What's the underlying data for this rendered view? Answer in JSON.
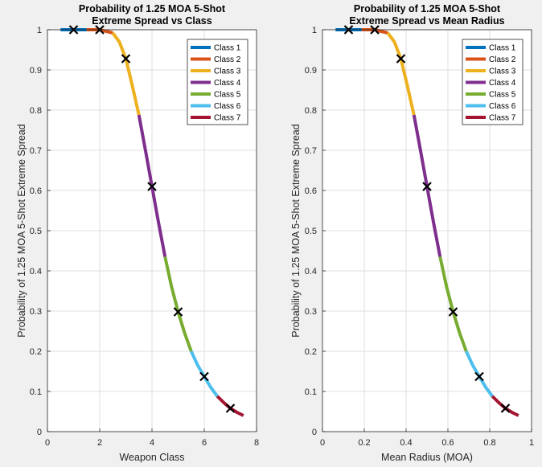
{
  "chart_data": [
    {
      "type": "line",
      "title": [
        "Probability of 1.25 MOA 5-Shot",
        "Extreme Spread vs Class"
      ],
      "xlabel": "Weapon Class",
      "ylabel": "Probability of 1.25 MOA 5-Shot Extreme Spread",
      "xlim": [
        0,
        8
      ],
      "ylim": [
        0,
        1
      ],
      "xticks": [
        0,
        2,
        4,
        6,
        8
      ],
      "yticks": [
        0,
        0.1,
        0.2,
        0.3,
        0.4,
        0.5,
        0.6,
        0.7,
        0.8,
        0.9,
        1
      ],
      "grid": true,
      "legend_position": "top-right",
      "series": [
        {
          "name": "Class 1",
          "color": "#0072BD",
          "x": [
            0.5,
            1.0,
            1.5
          ],
          "y": [
            1.0,
            1.0,
            1.0
          ]
        },
        {
          "name": "Class 2",
          "color": "#D95319",
          "x": [
            1.5,
            2.0,
            2.5
          ],
          "y": [
            1.0,
            1.0,
            0.992
          ]
        },
        {
          "name": "Class 3",
          "color": "#EDB120",
          "x": [
            2.5,
            2.75,
            3.0,
            3.25,
            3.5
          ],
          "y": [
            0.992,
            0.97,
            0.928,
            0.86,
            0.788
          ]
        },
        {
          "name": "Class 4",
          "color": "#7E2F8E",
          "x": [
            3.5,
            3.75,
            4.0,
            4.25,
            4.5
          ],
          "y": [
            0.788,
            0.7,
            0.61,
            0.52,
            0.435
          ]
        },
        {
          "name": "Class 5",
          "color": "#77AC30",
          "x": [
            4.5,
            4.75,
            5.0,
            5.25,
            5.5
          ],
          "y": [
            0.435,
            0.36,
            0.298,
            0.245,
            0.2
          ]
        },
        {
          "name": "Class 6",
          "color": "#4DBEEE",
          "x": [
            5.5,
            5.75,
            6.0,
            6.25,
            6.5
          ],
          "y": [
            0.2,
            0.165,
            0.137,
            0.11,
            0.088
          ]
        },
        {
          "name": "Class 7",
          "color": "#A2142F",
          "x": [
            6.5,
            6.75,
            7.0,
            7.25,
            7.5
          ],
          "y": [
            0.088,
            0.072,
            0.058,
            0.048,
            0.04
          ]
        }
      ],
      "markers": {
        "symbol": "x",
        "x": [
          1,
          2,
          3,
          4,
          5,
          6,
          7
        ],
        "y": [
          1.0,
          1.0,
          0.928,
          0.61,
          0.298,
          0.137,
          0.058
        ]
      }
    },
    {
      "type": "line",
      "title": [
        "Probability of 1.25 MOA 5-Shot",
        "Extreme Spread vs Mean Radius"
      ],
      "xlabel": "Mean Radius (MOA)",
      "ylabel": "Probability of 1.25 MOA 5-Shot Extreme Spread",
      "xlim": [
        0,
        1
      ],
      "ylim": [
        0,
        1
      ],
      "xticks": [
        0,
        0.2,
        0.4,
        0.6,
        0.8,
        1
      ],
      "yticks": [
        0,
        0.1,
        0.2,
        0.3,
        0.4,
        0.5,
        0.6,
        0.7,
        0.8,
        0.9,
        1
      ],
      "grid": true,
      "legend_position": "top-right",
      "series": [
        {
          "name": "Class 1",
          "color": "#0072BD",
          "x": [
            0.0625,
            0.125,
            0.1875
          ],
          "y": [
            1.0,
            1.0,
            1.0
          ]
        },
        {
          "name": "Class 2",
          "color": "#D95319",
          "x": [
            0.1875,
            0.25,
            0.3125
          ],
          "y": [
            1.0,
            1.0,
            0.992
          ]
        },
        {
          "name": "Class 3",
          "color": "#EDB120",
          "x": [
            0.3125,
            0.34375,
            0.375,
            0.40625,
            0.4375
          ],
          "y": [
            0.992,
            0.97,
            0.928,
            0.86,
            0.788
          ]
        },
        {
          "name": "Class 4",
          "color": "#7E2F8E",
          "x": [
            0.4375,
            0.46875,
            0.5,
            0.53125,
            0.5625
          ],
          "y": [
            0.788,
            0.7,
            0.61,
            0.52,
            0.435
          ]
        },
        {
          "name": "Class 5",
          "color": "#77AC30",
          "x": [
            0.5625,
            0.59375,
            0.625,
            0.65625,
            0.6875
          ],
          "y": [
            0.435,
            0.36,
            0.298,
            0.245,
            0.2
          ]
        },
        {
          "name": "Class 6",
          "color": "#4DBEEE",
          "x": [
            0.6875,
            0.71875,
            0.75,
            0.78125,
            0.8125
          ],
          "y": [
            0.2,
            0.165,
            0.137,
            0.11,
            0.088
          ]
        },
        {
          "name": "Class 7",
          "color": "#A2142F",
          "x": [
            0.8125,
            0.84375,
            0.875,
            0.90625,
            0.9375
          ],
          "y": [
            0.088,
            0.072,
            0.058,
            0.048,
            0.04
          ]
        }
      ],
      "markers": {
        "symbol": "x",
        "x": [
          0.125,
          0.25,
          0.375,
          0.5,
          0.625,
          0.75,
          0.875
        ],
        "y": [
          1.0,
          1.0,
          0.928,
          0.61,
          0.298,
          0.137,
          0.058
        ]
      }
    }
  ]
}
